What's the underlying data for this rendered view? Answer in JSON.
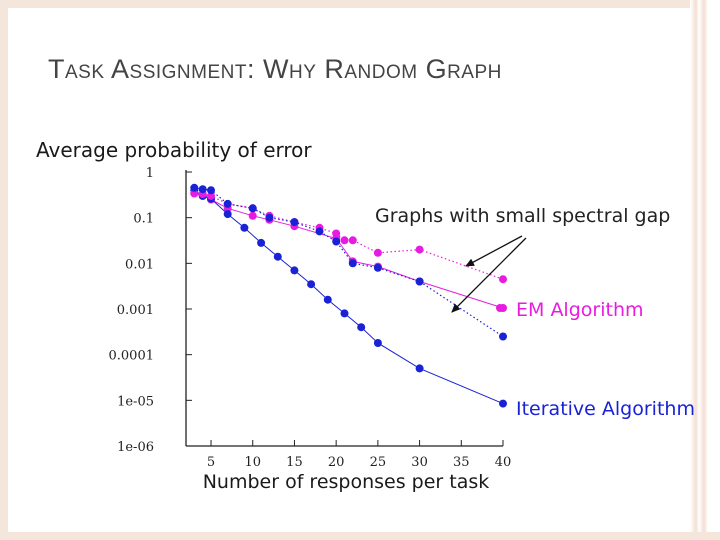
{
  "slide": {
    "title": "Task Assignment: Why Random Graph"
  },
  "chart_data": {
    "type": "line",
    "title": "Average probability of error",
    "xlabel": "Number of responses per task",
    "ylabel": "",
    "y_scale": "log",
    "xlim": [
      2,
      40
    ],
    "ylim": [
      1e-06,
      1
    ],
    "x_ticks": [
      5,
      10,
      15,
      20,
      25,
      30,
      35,
      40
    ],
    "y_ticks": [
      {
        "value": 1,
        "label": "1"
      },
      {
        "value": 0.1,
        "label": "0.1"
      },
      {
        "value": 0.01,
        "label": "0.01"
      },
      {
        "value": 0.001,
        "label": "0.001"
      },
      {
        "value": 0.0001,
        "label": "0.0001"
      },
      {
        "value": 1e-05,
        "label": "1e-05"
      },
      {
        "value": 1e-06,
        "label": "1e-06"
      }
    ],
    "series": [
      {
        "name": "EM Algorithm",
        "color": "#e81ce0",
        "line_style": "solid",
        "x": [
          3,
          4,
          5,
          7,
          10,
          12,
          15,
          20,
          22,
          25,
          30,
          40
        ],
        "y": [
          0.34,
          0.3,
          0.25,
          0.16,
          0.11,
          0.09,
          0.065,
          0.035,
          0.011,
          0.0085,
          0.004,
          0.00105
        ]
      },
      {
        "name": "Iterative Algorithm",
        "color": "#1a22d6",
        "line_style": "solid",
        "x": [
          3,
          4,
          5,
          7,
          9,
          11,
          13,
          15,
          17,
          19,
          21,
          23,
          25,
          30,
          40
        ],
        "y": [
          0.4,
          0.3,
          0.26,
          0.12,
          0.06,
          0.028,
          0.014,
          0.007,
          0.0035,
          0.0016,
          0.0008,
          0.0004,
          0.00018,
          5e-05,
          8.5e-06
        ]
      },
      {
        "name": "",
        "color": "#e81ce0",
        "line_style": "dotted",
        "x": [
          3,
          4,
          5,
          7,
          10,
          12,
          15,
          18,
          20,
          21,
          22,
          25,
          30,
          40
        ],
        "y": [
          0.34,
          0.33,
          0.3,
          0.2,
          0.16,
          0.11,
          0.08,
          0.06,
          0.045,
          0.032,
          0.032,
          0.017,
          0.02,
          0.0045
        ]
      },
      {
        "name": "",
        "color": "#1a22d6",
        "line_style": "dotted",
        "x": [
          3,
          4,
          5,
          7,
          10,
          12,
          15,
          18,
          20,
          22,
          25,
          30,
          40
        ],
        "y": [
          0.45,
          0.42,
          0.4,
          0.2,
          0.16,
          0.1,
          0.08,
          0.05,
          0.03,
          0.01,
          0.008,
          0.004,
          0.00025
        ]
      }
    ],
    "annotations": [
      {
        "id": "spectral",
        "text": "Graphs with small spectral gap",
        "color": "#222222"
      },
      {
        "id": "em",
        "text": "EM Algorithm",
        "color": "#e81ce0"
      },
      {
        "id": "iterative",
        "text": "Iterative Algorithm",
        "color": "#1a22d6"
      }
    ]
  }
}
